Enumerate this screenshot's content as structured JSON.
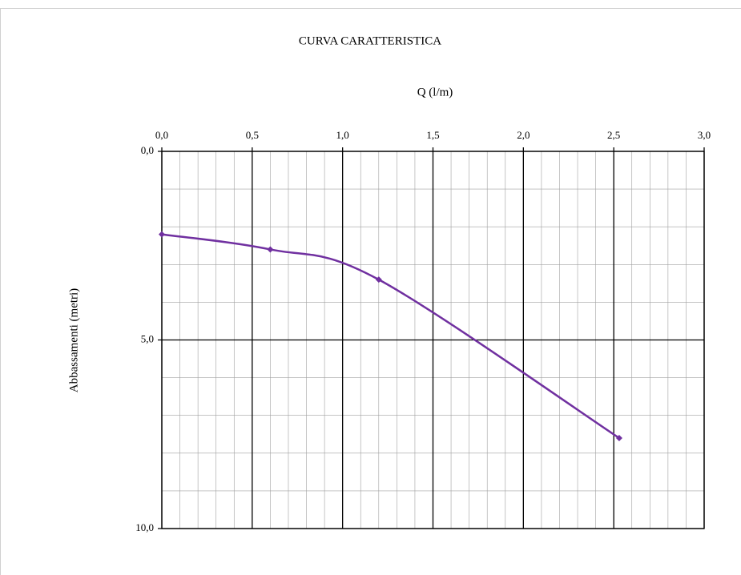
{
  "chart_data": {
    "type": "line",
    "title": "CURVA CARATTERISTICA",
    "x_label": "Q (l/m)",
    "y_label": "Abbassamenti (metri)",
    "x": [
      0,
      0.6,
      1.2,
      2.53
    ],
    "values": [
      2.2,
      2.6,
      3.4,
      7.6
    ],
    "color": "#7030a0",
    "smooth": true,
    "xlim": [
      0,
      3
    ],
    "ylim": [
      0,
      10
    ],
    "y_inverted": true,
    "x_axis_position": "top",
    "xticks": [
      {
        "value": 0,
        "label": "0,0"
      },
      {
        "value": 0.5,
        "label": "0,5"
      },
      {
        "value": 1,
        "label": "1,0"
      },
      {
        "value": 1.5,
        "label": "1,5"
      },
      {
        "value": 2,
        "label": "2,0"
      },
      {
        "value": 2.5,
        "label": "2,5"
      },
      {
        "value": 3,
        "label": "3,0"
      }
    ],
    "yticks": [
      {
        "value": 0,
        "label": "0,0"
      },
      {
        "value": 5,
        "label": "5,0"
      },
      {
        "value": 10,
        "label": "10,0"
      }
    ],
    "minor_xticks": [
      0.1,
      0.2,
      0.3,
      0.4,
      0.6,
      0.7,
      0.8,
      0.9,
      1.1,
      1.2,
      1.3,
      1.4,
      1.6,
      1.7,
      1.8,
      1.9,
      2.1,
      2.2,
      2.3,
      2.4,
      2.6,
      2.7,
      2.8,
      2.9
    ],
    "minor_yticks": [
      1,
      2,
      3,
      4,
      6,
      7,
      8,
      9
    ],
    "grid": true
  }
}
